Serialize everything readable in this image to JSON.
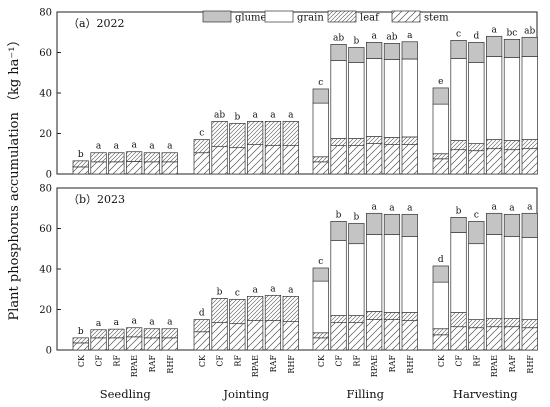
{
  "chart_data": {
    "type": "bar",
    "stacked": true,
    "ylabel": "Plant phosphorus accumulation （kg ha⁻¹）",
    "ylim": [
      0,
      80
    ],
    "yticks": [
      0,
      20,
      40,
      60,
      80
    ],
    "legend": {
      "placement": "top-right",
      "entries": [
        "glume",
        "grain",
        "leaf",
        "stem"
      ]
    },
    "components": [
      {
        "name": "stem",
        "fill": "hatch-sparse"
      },
      {
        "name": "leaf",
        "fill": "hatch-dense"
      },
      {
        "name": "grain",
        "fill": "#ffffff"
      },
      {
        "name": "glume",
        "fill": "#c4c4c4"
      }
    ],
    "stages": [
      "Seedling",
      "Jointing",
      "Filling",
      "Harvesting"
    ],
    "treatments": [
      "CK",
      "CF",
      "RF",
      "RPAE",
      "RAF",
      "RHF"
    ],
    "panels": [
      {
        "label": "（a）2022",
        "stages": [
          {
            "stage": "Seedling",
            "stem": [
              3.5,
              6.0,
              6.0,
              6.2,
              6.0,
              6.0
            ],
            "leaf": [
              3.0,
              4.5,
              4.5,
              4.8,
              4.5,
              4.5
            ],
            "grain": [
              0,
              0,
              0,
              0,
              0,
              0
            ],
            "glume": [
              0,
              0,
              0,
              0,
              0,
              0
            ],
            "sig": [
              "b",
              "a",
              "a",
              "a",
              "a",
              "a"
            ]
          },
          {
            "stage": "Jointing",
            "stem": [
              10.5,
              13.5,
              13.0,
              14.5,
              14.0,
              14.0
            ],
            "leaf": [
              6.5,
              12.5,
              12.0,
              11.5,
              12.0,
              12.0
            ],
            "grain": [
              0,
              0,
              0,
              0,
              0,
              0
            ],
            "glume": [
              0,
              0,
              0,
              0,
              0,
              0
            ],
            "sig": [
              "c",
              "ab",
              "b",
              "a",
              "a",
              "a"
            ]
          },
          {
            "stage": "Filling",
            "stem": [
              6.0,
              14.0,
              14.0,
              15.0,
              14.5,
              14.5
            ],
            "leaf": [
              2.5,
              3.5,
              3.5,
              3.5,
              3.5,
              3.8
            ],
            "grain": [
              26.5,
              38.5,
              37.5,
              38.5,
              38.5,
              38.5
            ],
            "glume": [
              7.0,
              8.0,
              7.5,
              8.0,
              8.0,
              8.5
            ],
            "sig": [
              "c",
              "ab",
              "b",
              "a",
              "ab",
              "a"
            ]
          },
          {
            "stage": "Harvesting",
            "stem": [
              7.5,
              12.0,
              11.5,
              12.5,
              12.0,
              12.5
            ],
            "leaf": [
              2.5,
              4.5,
              3.5,
              4.5,
              4.5,
              4.5
            ],
            "grain": [
              24.5,
              40.5,
              40.0,
              41.0,
              41.0,
              41.0
            ],
            "glume": [
              8.0,
              9.0,
              10.0,
              10.0,
              9.0,
              9.5
            ],
            "sig": [
              "e",
              "c",
              "d",
              "a",
              "bc",
              "ab"
            ]
          }
        ]
      },
      {
        "label": "（b）2023",
        "stages": [
          {
            "stage": "Seedling",
            "stem": [
              3.5,
              6.0,
              6.0,
              6.5,
              6.0,
              6.0
            ],
            "leaf": [
              2.5,
              4.0,
              4.3,
              4.5,
              4.5,
              4.5
            ],
            "grain": [
              0,
              0,
              0,
              0,
              0,
              0
            ],
            "glume": [
              0,
              0,
              0,
              0,
              0,
              0
            ],
            "sig": [
              "b",
              "a",
              "a",
              "a",
              "a",
              "a"
            ]
          },
          {
            "stage": "Jointing",
            "stem": [
              9.0,
              13.5,
              13.0,
              14.5,
              14.5,
              14.0
            ],
            "leaf": [
              6.0,
              12.0,
              12.0,
              12.0,
              12.5,
              12.5
            ],
            "grain": [
              0,
              0,
              0,
              0,
              0,
              0
            ],
            "glume": [
              0,
              0,
              0,
              0,
              0,
              0
            ],
            "sig": [
              "d",
              "b",
              "c",
              "a",
              "a",
              "a"
            ]
          },
          {
            "stage": "Filling",
            "stem": [
              6.0,
              13.5,
              13.5,
              15.0,
              15.0,
              14.5
            ],
            "leaf": [
              2.5,
              3.5,
              3.5,
              4.0,
              3.5,
              4.0
            ],
            "grain": [
              25.5,
              37.0,
              35.5,
              38.0,
              38.5,
              37.5
            ],
            "glume": [
              6.5,
              9.5,
              10.0,
              10.5,
              10.0,
              11.0
            ],
            "sig": [
              "c",
              "b",
              "b",
              "a",
              "a",
              "a"
            ]
          },
          {
            "stage": "Harvesting",
            "stem": [
              7.5,
              11.5,
              11.0,
              11.5,
              11.5,
              11.0
            ],
            "leaf": [
              3.0,
              7.0,
              4.0,
              4.0,
              4.0,
              4.0
            ],
            "grain": [
              23.0,
              39.5,
              37.5,
              41.5,
              40.5,
              40.5
            ],
            "glume": [
              8.0,
              7.5,
              11.0,
              10.5,
              11.0,
              12.0
            ],
            "sig": [
              "d",
              "b",
              "c",
              "a",
              "a",
              "a"
            ]
          }
        ]
      }
    ]
  }
}
